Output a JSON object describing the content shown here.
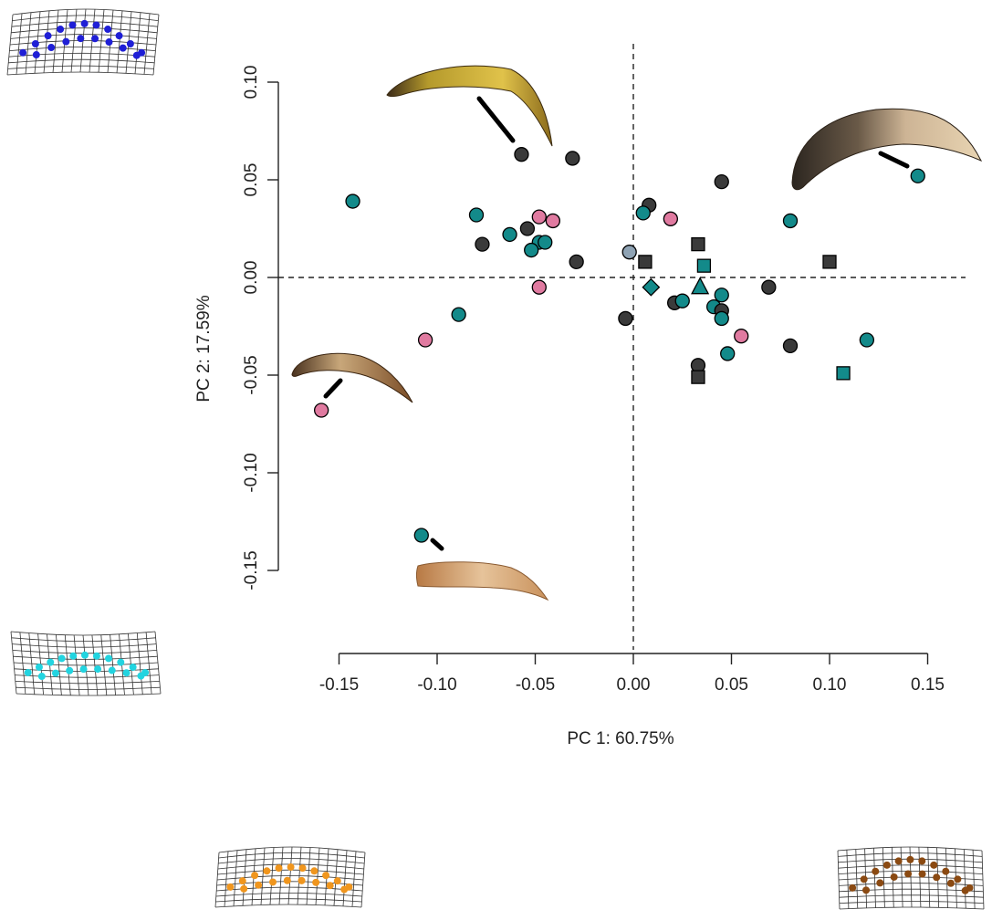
{
  "chart_data": {
    "type": "scatter",
    "title": "",
    "xlabel": "PC 1: 60.75%",
    "ylabel": "PC 2: 17.59%",
    "xlim": [
      -0.165,
      0.168
    ],
    "ylim": [
      -0.155,
      0.118
    ],
    "xticks": [
      "-0.15",
      "-0.10",
      "-0.05",
      "0.00",
      "0.05",
      "0.10",
      "0.15"
    ],
    "yticks": [
      "-0.15",
      "-0.10",
      "-0.05",
      "0.00",
      "0.05",
      "0.10"
    ],
    "grid": false,
    "reference_lines": {
      "x": 0,
      "y": 0,
      "style": "dashed"
    },
    "colors": {
      "dark": "#3a3a3a",
      "teal": "#138a8a",
      "pink": "#e07aa0",
      "slate": "#8fa3b4",
      "grid_blue": "#1f1fd6",
      "grid_cyan": "#22d4e0",
      "grid_orange": "#f0961e",
      "grid_brown": "#8b4a12"
    },
    "points": [
      {
        "x": -0.057,
        "y": 0.063,
        "color": "dark",
        "shape": "circle"
      },
      {
        "x": -0.031,
        "y": 0.061,
        "color": "dark",
        "shape": "circle"
      },
      {
        "x": 0.045,
        "y": 0.049,
        "color": "dark",
        "shape": "circle"
      },
      {
        "x": 0.145,
        "y": 0.052,
        "color": "teal",
        "shape": "circle"
      },
      {
        "x": -0.143,
        "y": 0.039,
        "color": "teal",
        "shape": "circle"
      },
      {
        "x": -0.08,
        "y": 0.032,
        "color": "teal",
        "shape": "circle"
      },
      {
        "x": 0.008,
        "y": 0.037,
        "color": "dark",
        "shape": "circle"
      },
      {
        "x": 0.005,
        "y": 0.033,
        "color": "teal",
        "shape": "circle"
      },
      {
        "x": 0.019,
        "y": 0.03,
        "color": "pink",
        "shape": "circle"
      },
      {
        "x": 0.08,
        "y": 0.029,
        "color": "teal",
        "shape": "circle"
      },
      {
        "x": -0.048,
        "y": 0.031,
        "color": "pink",
        "shape": "circle"
      },
      {
        "x": -0.041,
        "y": 0.029,
        "color": "pink",
        "shape": "circle"
      },
      {
        "x": -0.054,
        "y": 0.025,
        "color": "dark",
        "shape": "circle"
      },
      {
        "x": -0.063,
        "y": 0.022,
        "color": "teal",
        "shape": "circle"
      },
      {
        "x": -0.077,
        "y": 0.017,
        "color": "dark",
        "shape": "circle"
      },
      {
        "x": -0.048,
        "y": 0.018,
        "color": "teal",
        "shape": "circle"
      },
      {
        "x": -0.045,
        "y": 0.018,
        "color": "teal",
        "shape": "circle"
      },
      {
        "x": -0.052,
        "y": 0.014,
        "color": "teal",
        "shape": "circle"
      },
      {
        "x": -0.029,
        "y": 0.008,
        "color": "dark",
        "shape": "circle"
      },
      {
        "x": -0.002,
        "y": 0.013,
        "color": "slate",
        "shape": "circle"
      },
      {
        "x": 0.006,
        "y": 0.008,
        "color": "dark",
        "shape": "square"
      },
      {
        "x": 0.033,
        "y": 0.017,
        "color": "dark",
        "shape": "square"
      },
      {
        "x": 0.036,
        "y": 0.006,
        "color": "teal",
        "shape": "square"
      },
      {
        "x": 0.1,
        "y": 0.008,
        "color": "dark",
        "shape": "square"
      },
      {
        "x": -0.048,
        "y": -0.005,
        "color": "pink",
        "shape": "circle"
      },
      {
        "x": 0.009,
        "y": -0.005,
        "color": "teal",
        "shape": "diamond"
      },
      {
        "x": 0.034,
        "y": -0.005,
        "color": "teal",
        "shape": "triangle"
      },
      {
        "x": 0.069,
        "y": -0.005,
        "color": "dark",
        "shape": "circle"
      },
      {
        "x": 0.045,
        "y": -0.009,
        "color": "teal",
        "shape": "circle"
      },
      {
        "x": 0.021,
        "y": -0.013,
        "color": "dark",
        "shape": "circle"
      },
      {
        "x": 0.025,
        "y": -0.012,
        "color": "teal",
        "shape": "circle"
      },
      {
        "x": 0.041,
        "y": -0.015,
        "color": "teal",
        "shape": "circle"
      },
      {
        "x": 0.045,
        "y": -0.017,
        "color": "dark",
        "shape": "circle"
      },
      {
        "x": 0.045,
        "y": -0.021,
        "color": "teal",
        "shape": "circle"
      },
      {
        "x": -0.089,
        "y": -0.019,
        "color": "teal",
        "shape": "circle"
      },
      {
        "x": -0.004,
        "y": -0.021,
        "color": "dark",
        "shape": "circle"
      },
      {
        "x": 0.055,
        "y": -0.03,
        "color": "pink",
        "shape": "circle"
      },
      {
        "x": -0.106,
        "y": -0.032,
        "color": "pink",
        "shape": "circle"
      },
      {
        "x": 0.08,
        "y": -0.035,
        "color": "dark",
        "shape": "circle"
      },
      {
        "x": 0.119,
        "y": -0.032,
        "color": "teal",
        "shape": "circle"
      },
      {
        "x": 0.048,
        "y": -0.039,
        "color": "teal",
        "shape": "circle"
      },
      {
        "x": 0.033,
        "y": -0.045,
        "color": "dark",
        "shape": "circle"
      },
      {
        "x": 0.033,
        "y": -0.051,
        "color": "dark",
        "shape": "square"
      },
      {
        "x": 0.107,
        "y": -0.049,
        "color": "teal",
        "shape": "square"
      },
      {
        "x": -0.159,
        "y": -0.068,
        "color": "pink",
        "shape": "circle"
      },
      {
        "x": -0.108,
        "y": -0.132,
        "color": "teal",
        "shape": "circle"
      }
    ]
  }
}
